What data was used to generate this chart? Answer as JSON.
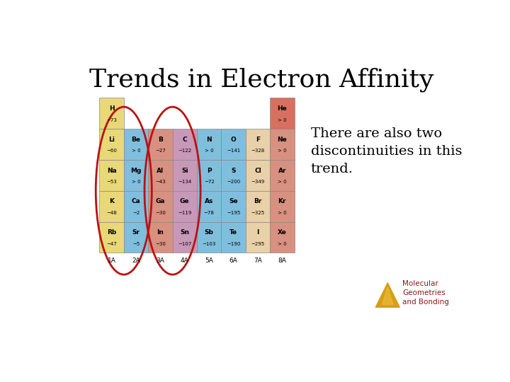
{
  "title": "Trends in Electron Affinity",
  "title_fontsize": 26,
  "body_text": "There are also two\ndiscontinuities in this\ntrend.",
  "body_fontsize": 14,
  "footer_text": "Molecular\nGeometries\nand Bonding",
  "footer_fontsize": 7.5,
  "footer_color": "#8B1A1A",
  "background_color": "#ffffff",
  "table": {
    "cols": [
      "1A",
      "2A",
      "3A",
      "4A",
      "5A",
      "6A",
      "7A",
      "8A"
    ],
    "rows": [
      [
        {
          "sym": "H",
          "val": "−73",
          "color": "#e8d878"
        },
        {
          "sym": "",
          "val": "",
          "color": "#ffffff"
        },
        {
          "sym": "",
          "val": "",
          "color": "#ffffff"
        },
        {
          "sym": "",
          "val": "",
          "color": "#ffffff"
        },
        {
          "sym": "",
          "val": "",
          "color": "#ffffff"
        },
        {
          "sym": "",
          "val": "",
          "color": "#ffffff"
        },
        {
          "sym": "",
          "val": "",
          "color": "#ffffff"
        },
        {
          "sym": "He",
          "val": "> 0",
          "color": "#d87060"
        }
      ],
      [
        {
          "sym": "Li",
          "val": "−60",
          "color": "#e8d878"
        },
        {
          "sym": "Be",
          "val": "> 0",
          "color": "#80BEDD"
        },
        {
          "sym": "B",
          "val": "−27",
          "color": "#d89080"
        },
        {
          "sym": "C",
          "val": "−122",
          "color": "#c898b8"
        },
        {
          "sym": "N",
          "val": "> 0",
          "color": "#80BEDD"
        },
        {
          "sym": "O",
          "val": "−141",
          "color": "#80BEDD"
        },
        {
          "sym": "F",
          "val": "−328",
          "color": "#e8d0a8"
        },
        {
          "sym": "Ne",
          "val": "> 0",
          "color": "#d89080"
        }
      ],
      [
        {
          "sym": "Na",
          "val": "−53",
          "color": "#e8d878"
        },
        {
          "sym": "Mg",
          "val": "> 0",
          "color": "#80BEDD"
        },
        {
          "sym": "Al",
          "val": "−43",
          "color": "#d89080"
        },
        {
          "sym": "Si",
          "val": "−134",
          "color": "#c898b8"
        },
        {
          "sym": "P",
          "val": "−72",
          "color": "#80BEDD"
        },
        {
          "sym": "S",
          "val": "−200",
          "color": "#80BEDD"
        },
        {
          "sym": "Cl",
          "val": "−349",
          "color": "#e8d0a8"
        },
        {
          "sym": "Ar",
          "val": "> 0",
          "color": "#d89080"
        }
      ],
      [
        {
          "sym": "K",
          "val": "−48",
          "color": "#e8d878"
        },
        {
          "sym": "Ca",
          "val": "−2",
          "color": "#80BEDD"
        },
        {
          "sym": "Ga",
          "val": "−30",
          "color": "#d89080"
        },
        {
          "sym": "Ge",
          "val": "−119",
          "color": "#c898b8"
        },
        {
          "sym": "As",
          "val": "−78",
          "color": "#80BEDD"
        },
        {
          "sym": "Se",
          "val": "−195",
          "color": "#80BEDD"
        },
        {
          "sym": "Br",
          "val": "−325",
          "color": "#e8d0a8"
        },
        {
          "sym": "Kr",
          "val": "> 0",
          "color": "#d89080"
        }
      ],
      [
        {
          "sym": "Rb",
          "val": "−47",
          "color": "#e8d878"
        },
        {
          "sym": "Sr",
          "val": "−5",
          "color": "#80BEDD"
        },
        {
          "sym": "In",
          "val": "−30",
          "color": "#d89080"
        },
        {
          "sym": "Sn",
          "val": "−107",
          "color": "#c898b8"
        },
        {
          "sym": "Sb",
          "val": "−103",
          "color": "#80BEDD"
        },
        {
          "sym": "Te",
          "val": "−190",
          "color": "#80BEDD"
        },
        {
          "sym": "I",
          "val": "−295",
          "color": "#e8d0a8"
        },
        {
          "sym": "Xe",
          "val": "> 0",
          "color": "#d89080"
        }
      ]
    ]
  },
  "ellipse_color": "#bb1111",
  "triangle_color": "#D4A017",
  "triangle_highlight": "#F0C040"
}
